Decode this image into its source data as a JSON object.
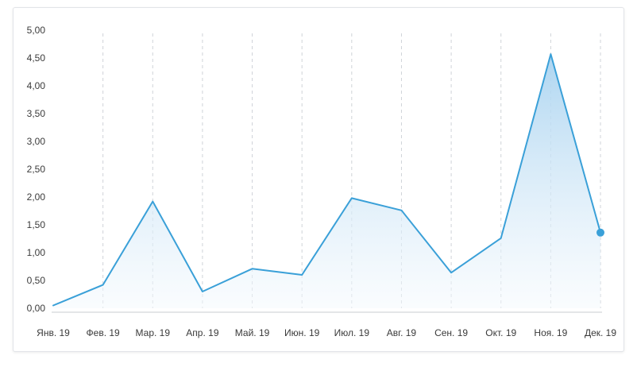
{
  "colors": {
    "line": "#3aa0d8",
    "area_top": "#a9d3f0",
    "area_bottom": "#f4f9fd",
    "grid": "#cfd3d8",
    "axis": "#c8ccd1",
    "text": "#3a3a3a"
  },
  "chart_data": {
    "type": "area",
    "categories": [
      "Янв. 19",
      "Фев. 19",
      "Мар. 19",
      "Апр. 19",
      "Май. 19",
      "Июн. 19",
      "Июл. 19",
      "Авг. 19",
      "Сен. 19",
      "Окт. 19",
      "Ноя. 19",
      "Дек. 19"
    ],
    "series": [
      {
        "values": [
          0.05,
          0.42,
          1.92,
          0.3,
          0.71,
          0.6,
          1.98,
          1.76,
          0.64,
          1.26,
          4.57,
          1.36
        ]
      }
    ],
    "yticks": [
      "0,00",
      "0,50",
      "1,00",
      "1,50",
      "2,00",
      "2,50",
      "3,00",
      "3,50",
      "4,00",
      "4,50",
      "5,00"
    ],
    "ylim": [
      0,
      5
    ],
    "grid": "vertical-dashed",
    "legend": "none",
    "highlighted_point": "last"
  }
}
